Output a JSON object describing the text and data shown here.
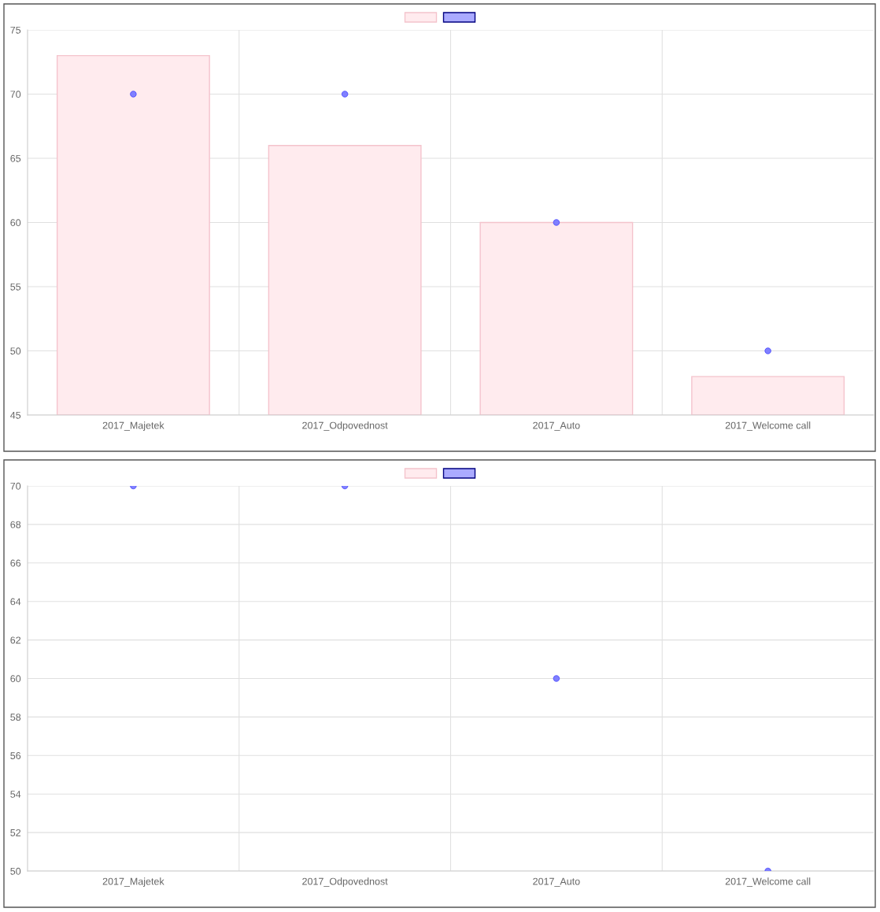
{
  "chart_data": [
    {
      "type": "bar",
      "categories": [
        "2017_Majetek",
        "2017_Odpovednost",
        "2017_Auto",
        "2017_Welcome call"
      ],
      "ylim": [
        45,
        75
      ],
      "yticks": [
        45,
        50,
        55,
        60,
        65,
        70,
        75
      ],
      "grid": true,
      "series": [
        {
          "color": "#ffebee",
          "values": [
            73,
            66,
            60,
            48
          ]
        },
        {
          "type": "scatter",
          "color": "#8080ff",
          "marker": "circle",
          "values": [
            70,
            70,
            60,
            50
          ]
        }
      ]
    },
    {
      "type": "bar",
      "categories": [
        "2017_Majetek",
        "2017_Odpovednost",
        "2017_Auto",
        "2017_Welcome call"
      ],
      "ylim": [
        50,
        70
      ],
      "yticks": [
        50,
        52,
        54,
        56,
        58,
        60,
        62,
        64,
        66,
        68,
        70
      ],
      "grid": true,
      "series": [
        {
          "color": "#ffebee",
          "values": [
            null,
            null,
            null,
            null
          ]
        },
        {
          "type": "scatter",
          "color": "#8080ff",
          "marker": "circle",
          "values": [
            70,
            70,
            60,
            50
          ]
        }
      ]
    }
  ]
}
